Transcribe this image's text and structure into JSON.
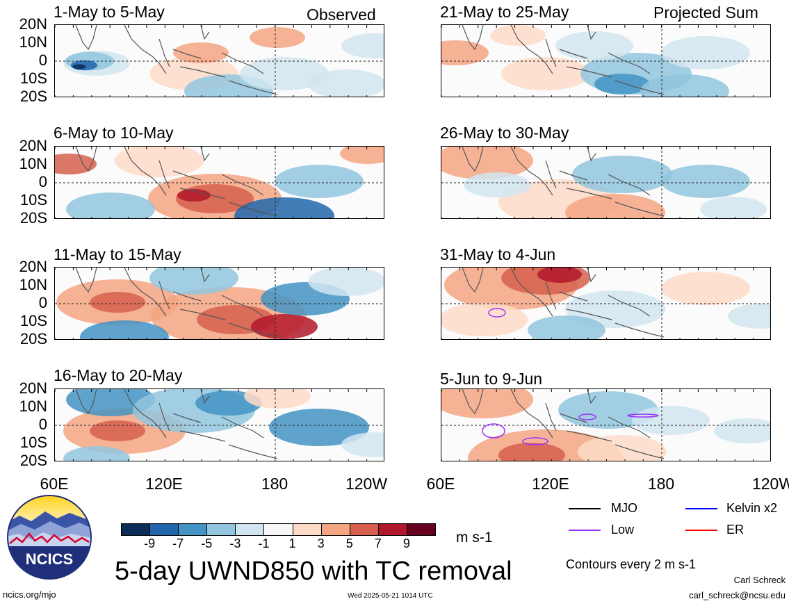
{
  "header": {
    "observed_label": "Observed",
    "projected_label": "Projected Sum"
  },
  "panels": [
    {
      "title": "1-May to 5-May",
      "column": "observed"
    },
    {
      "title": "6-May to 10-May",
      "column": "observed"
    },
    {
      "title": "11-May to 15-May",
      "column": "observed"
    },
    {
      "title": "16-May to 20-May",
      "column": "observed"
    },
    {
      "title": "21-May to 25-May",
      "column": "projected"
    },
    {
      "title": "26-May to 30-May",
      "column": "projected"
    },
    {
      "title": "31-May to 4-Jun",
      "column": "projected"
    },
    {
      "title": "5-Jun to 9-Jun",
      "column": "projected"
    }
  ],
  "chart_data": {
    "type": "heatmap",
    "title": "5-day UWND850 with TC removal",
    "units": "m s-1",
    "x_ticks": [
      "60E",
      "120E",
      "180",
      "120W"
    ],
    "y_ticks": [
      "20N",
      "10N",
      "0",
      "10S",
      "20S"
    ],
    "xlim": [
      60,
      240
    ],
    "ylim": [
      -20,
      20
    ],
    "reference_lines": {
      "lon": 180,
      "lat": 0
    },
    "colorbar": {
      "labels": [
        "-9",
        "-7",
        "-5",
        "-3",
        "-1",
        "1",
        "3",
        "5",
        "7",
        "9"
      ],
      "colors": [
        "#0b2d58",
        "#2166ac",
        "#4393c3",
        "#92c5de",
        "#d1e5f0",
        "#f7f7f7",
        "#fddbc7",
        "#f4a582",
        "#d6604d",
        "#b2182b",
        "#67001f"
      ]
    },
    "contour_note": "Contours every 2 m s-1",
    "legend": [
      {
        "label": "MJO",
        "color": "#000000"
      },
      {
        "label": "Kelvin x2",
        "color": "#0000ff"
      },
      {
        "label": "Low",
        "color": "#9b30ff"
      },
      {
        "label": "ER",
        "color": "#ff0000"
      }
    ]
  },
  "footer": {
    "logo_text": "NCICS",
    "website": "ncics.org/mjo",
    "timestamp": "Wed 2025-05-21 1014 UTC",
    "author": "Carl Schreck",
    "email": "carl_schreck@ncsu.edu"
  }
}
